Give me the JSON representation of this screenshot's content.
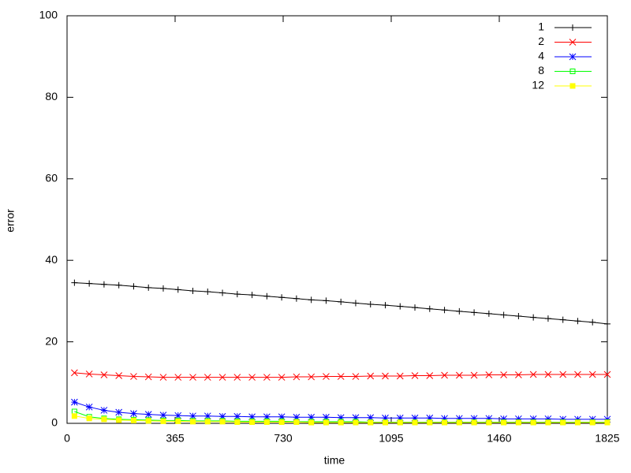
{
  "chart_data": {
    "type": "line",
    "xlabel": "time",
    "ylabel": "error",
    "x": [
      25,
      75,
      125,
      175,
      225,
      275,
      325,
      375,
      425,
      475,
      525,
      575,
      625,
      675,
      725,
      775,
      825,
      875,
      925,
      975,
      1025,
      1075,
      1125,
      1175,
      1225,
      1275,
      1325,
      1375,
      1425,
      1475,
      1525,
      1575,
      1625,
      1675,
      1725,
      1775,
      1825
    ],
    "xlim": [
      0,
      1825
    ],
    "xticks": [
      0,
      365,
      730,
      1095,
      1460,
      1825
    ],
    "ylim": [
      0,
      100
    ],
    "yticks": [
      0,
      20,
      40,
      60,
      80,
      100
    ],
    "legend": "top-right",
    "series": [
      {
        "name": "1",
        "color": "#000000",
        "marker": "plus",
        "values": [
          34.5,
          34.3,
          34.1,
          33.9,
          33.6,
          33.3,
          33.1,
          32.8,
          32.5,
          32.3,
          32.0,
          31.7,
          31.5,
          31.2,
          30.9,
          30.6,
          30.3,
          30.1,
          29.8,
          29.5,
          29.2,
          29.0,
          28.7,
          28.4,
          28.1,
          27.8,
          27.5,
          27.2,
          26.9,
          26.6,
          26.3,
          26.0,
          25.7,
          25.4,
          25.1,
          24.8,
          24.4
        ]
      },
      {
        "name": "2",
        "color": "#ff0000",
        "marker": "cross",
        "values": [
          12.4,
          12.1,
          11.9,
          11.7,
          11.5,
          11.4,
          11.3,
          11.3,
          11.3,
          11.3,
          11.3,
          11.3,
          11.3,
          11.3,
          11.3,
          11.4,
          11.4,
          11.5,
          11.5,
          11.5,
          11.6,
          11.6,
          11.6,
          11.7,
          11.7,
          11.8,
          11.8,
          11.8,
          11.9,
          11.9,
          11.9,
          12.0,
          12.0,
          12.0,
          12.0,
          12.0,
          12.0
        ]
      },
      {
        "name": "4",
        "color": "#0000ff",
        "marker": "star",
        "values": [
          5.2,
          4.0,
          3.2,
          2.7,
          2.4,
          2.2,
          2.0,
          1.9,
          1.8,
          1.8,
          1.7,
          1.7,
          1.6,
          1.6,
          1.6,
          1.5,
          1.5,
          1.5,
          1.4,
          1.4,
          1.4,
          1.3,
          1.3,
          1.3,
          1.3,
          1.2,
          1.2,
          1.2,
          1.2,
          1.1,
          1.1,
          1.1,
          1.1,
          1.0,
          1.0,
          1.0,
          1.0
        ]
      },
      {
        "name": "8",
        "color": "#00ff00",
        "marker": "square",
        "values": [
          2.9,
          1.6,
          1.2,
          1.0,
          0.9,
          0.8,
          0.7,
          0.7,
          0.6,
          0.6,
          0.6,
          0.5,
          0.5,
          0.5,
          0.5,
          0.4,
          0.4,
          0.4,
          0.4,
          0.4,
          0.3,
          0.3,
          0.3,
          0.3,
          0.3,
          0.3,
          0.3,
          0.3,
          0.3,
          0.3,
          0.3,
          0.3,
          0.3,
          0.3,
          0.3,
          0.3,
          0.3
        ]
      },
      {
        "name": "12",
        "color": "#ffff00",
        "marker": "filled-square",
        "values": [
          1.8,
          1.2,
          1.0,
          0.8,
          0.7,
          0.6,
          0.5,
          0.5,
          0.4,
          0.4,
          0.4,
          0.3,
          0.3,
          0.3,
          0.3,
          0.3,
          0.2,
          0.2,
          0.2,
          0.2,
          0.2,
          0.2,
          0.2,
          0.2,
          0.2,
          0.2,
          0.2,
          0.2,
          0.2,
          0.2,
          0.2,
          0.2,
          0.2,
          0.2,
          0.2,
          0.2,
          0.2
        ]
      }
    ]
  }
}
